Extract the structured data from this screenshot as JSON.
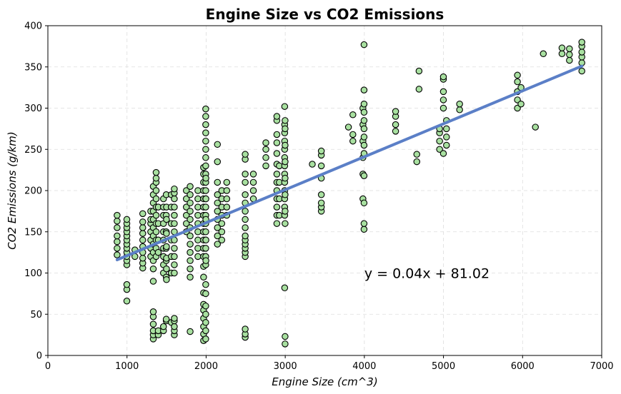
{
  "chart_data": {
    "type": "scatter",
    "title": "Engine Size vs CO2 Emissions",
    "xlabel": "Engine Size (cm^3)",
    "ylabel": "CO2 Emissions (g/km)",
    "xlim": [
      0,
      7000
    ],
    "ylim": [
      0,
      400
    ],
    "xticks": [
      0,
      1000,
      2000,
      3000,
      4000,
      5000,
      6000,
      7000
    ],
    "yticks": [
      0,
      50,
      100,
      150,
      200,
      250,
      300,
      350,
      400
    ],
    "xtick_labels": [
      "0",
      "1000",
      "2000",
      "3000",
      "4000",
      "5000",
      "6000",
      "7000"
    ],
    "ytick_labels": [
      "0",
      "50",
      "100",
      "150",
      "200",
      "250",
      "300",
      "350",
      "400"
    ],
    "grid": true,
    "colors": {
      "point_fill": "#a8e0a0",
      "point_edge": "#000000",
      "line": "#5b7fc7",
      "grid": "#dddddd"
    },
    "annotation": {
      "text": "y = 0.04x + 81.02",
      "x": 4000,
      "y": 100
    },
    "regression": {
      "slope": 0.04,
      "intercept": 81.02,
      "x_range": [
        875,
        6750
      ]
    },
    "points": [
      [
        875,
        122
      ],
      [
        875,
        130
      ],
      [
        875,
        138
      ],
      [
        875,
        145
      ],
      [
        875,
        155
      ],
      [
        875,
        163
      ],
      [
        875,
        170
      ],
      [
        998,
        66
      ],
      [
        998,
        80
      ],
      [
        998,
        86
      ],
      [
        998,
        110
      ],
      [
        998,
        115
      ],
      [
        998,
        120
      ],
      [
        998,
        125
      ],
      [
        998,
        130
      ],
      [
        998,
        135
      ],
      [
        998,
        140
      ],
      [
        998,
        145
      ],
      [
        998,
        150
      ],
      [
        998,
        155
      ],
      [
        998,
        160
      ],
      [
        998,
        165
      ],
      [
        1100,
        120
      ],
      [
        1100,
        128
      ],
      [
        1199,
        106
      ],
      [
        1199,
        112
      ],
      [
        1199,
        118
      ],
      [
        1199,
        125
      ],
      [
        1199,
        132
      ],
      [
        1199,
        140
      ],
      [
        1199,
        148
      ],
      [
        1199,
        155
      ],
      [
        1199,
        162
      ],
      [
        1199,
        172
      ],
      [
        1300,
        120
      ],
      [
        1300,
        130
      ],
      [
        1300,
        140
      ],
      [
        1300,
        150
      ],
      [
        1300,
        160
      ],
      [
        1300,
        165
      ],
      [
        1300,
        175
      ],
      [
        1332,
        20
      ],
      [
        1332,
        25
      ],
      [
        1332,
        30
      ],
      [
        1332,
        38
      ],
      [
        1332,
        47
      ],
      [
        1332,
        53
      ],
      [
        1332,
        90
      ],
      [
        1332,
        105
      ],
      [
        1332,
        115
      ],
      [
        1332,
        125
      ],
      [
        1332,
        135
      ],
      [
        1332,
        145
      ],
      [
        1332,
        155
      ],
      [
        1332,
        165
      ],
      [
        1332,
        175
      ],
      [
        1332,
        185
      ],
      [
        1332,
        195
      ],
      [
        1332,
        205
      ],
      [
        1368,
        120
      ],
      [
        1368,
        130
      ],
      [
        1368,
        140
      ],
      [
        1368,
        150
      ],
      [
        1368,
        160
      ],
      [
        1368,
        170
      ],
      [
        1368,
        180
      ],
      [
        1368,
        190
      ],
      [
        1368,
        200
      ],
      [
        1368,
        210
      ],
      [
        1368,
        215
      ],
      [
        1368,
        222
      ],
      [
        1395,
        25
      ],
      [
        1395,
        30
      ],
      [
        1395,
        125
      ],
      [
        1395,
        140
      ],
      [
        1395,
        160
      ],
      [
        1395,
        180
      ],
      [
        1461,
        30
      ],
      [
        1461,
        35
      ],
      [
        1461,
        100
      ],
      [
        1461,
        110
      ],
      [
        1461,
        120
      ],
      [
        1461,
        130
      ],
      [
        1461,
        140
      ],
      [
        1461,
        150
      ],
      [
        1461,
        160
      ],
      [
        1461,
        170
      ],
      [
        1461,
        180
      ],
      [
        1461,
        190
      ],
      [
        1496,
        42
      ],
      [
        1496,
        44
      ],
      [
        1496,
        95
      ],
      [
        1496,
        115
      ],
      [
        1496,
        130
      ],
      [
        1496,
        150
      ],
      [
        1496,
        170
      ],
      [
        1496,
        195
      ],
      [
        1499,
        92
      ],
      [
        1499,
        105
      ],
      [
        1499,
        118
      ],
      [
        1499,
        132
      ],
      [
        1499,
        148
      ],
      [
        1499,
        165
      ],
      [
        1499,
        180
      ],
      [
        1560,
        40
      ],
      [
        1560,
        100
      ],
      [
        1560,
        120
      ],
      [
        1560,
        140
      ],
      [
        1560,
        160
      ],
      [
        1560,
        180
      ],
      [
        1560,
        195
      ],
      [
        1598,
        25
      ],
      [
        1598,
        30
      ],
      [
        1598,
        35
      ],
      [
        1598,
        42
      ],
      [
        1598,
        45
      ],
      [
        1598,
        100
      ],
      [
        1598,
        110
      ],
      [
        1598,
        120
      ],
      [
        1598,
        130
      ],
      [
        1598,
        140
      ],
      [
        1598,
        150
      ],
      [
        1598,
        160
      ],
      [
        1598,
        170
      ],
      [
        1598,
        180
      ],
      [
        1598,
        190
      ],
      [
        1598,
        197
      ],
      [
        1598,
        202
      ],
      [
        1750,
        150
      ],
      [
        1750,
        160
      ],
      [
        1750,
        170
      ],
      [
        1750,
        180
      ],
      [
        1750,
        190
      ],
      [
        1750,
        200
      ],
      [
        1798,
        29
      ],
      [
        1798,
        95
      ],
      [
        1798,
        105
      ],
      [
        1798,
        115
      ],
      [
        1798,
        125
      ],
      [
        1798,
        135
      ],
      [
        1798,
        145
      ],
      [
        1798,
        155
      ],
      [
        1798,
        165
      ],
      [
        1798,
        175
      ],
      [
        1798,
        185
      ],
      [
        1798,
        195
      ],
      [
        1798,
        205
      ],
      [
        1896,
        120
      ],
      [
        1896,
        130
      ],
      [
        1896,
        140
      ],
      [
        1896,
        150
      ],
      [
        1896,
        160
      ],
      [
        1896,
        170
      ],
      [
        1896,
        180
      ],
      [
        1896,
        190
      ],
      [
        1896,
        200
      ],
      [
        1968,
        18
      ],
      [
        1968,
        26
      ],
      [
        1968,
        35
      ],
      [
        1968,
        45
      ],
      [
        1968,
        55
      ],
      [
        1968,
        62
      ],
      [
        1968,
        76
      ],
      [
        1968,
        95
      ],
      [
        1968,
        108
      ],
      [
        1968,
        120
      ],
      [
        1968,
        130
      ],
      [
        1968,
        140
      ],
      [
        1968,
        150
      ],
      [
        1968,
        160
      ],
      [
        1968,
        170
      ],
      [
        1968,
        180
      ],
      [
        1968,
        190
      ],
      [
        1968,
        200
      ],
      [
        1968,
        210
      ],
      [
        1968,
        220
      ],
      [
        1968,
        228
      ],
      [
        1995,
        20
      ],
      [
        1995,
        30
      ],
      [
        1995,
        40
      ],
      [
        1995,
        50
      ],
      [
        1995,
        60
      ],
      [
        1995,
        75
      ],
      [
        1995,
        86
      ],
      [
        1995,
        110
      ],
      [
        1995,
        120
      ],
      [
        1995,
        130
      ],
      [
        1995,
        140
      ],
      [
        1995,
        150
      ],
      [
        1995,
        160
      ],
      [
        1995,
        170
      ],
      [
        1995,
        180
      ],
      [
        1995,
        190
      ],
      [
        1995,
        200
      ],
      [
        1995,
        210
      ],
      [
        1995,
        220
      ],
      [
        1995,
        230
      ],
      [
        1995,
        240
      ],
      [
        1995,
        250
      ],
      [
        1995,
        260
      ],
      [
        1995,
        270
      ],
      [
        1995,
        280
      ],
      [
        1995,
        290
      ],
      [
        1995,
        299
      ],
      [
        1997,
        115
      ],
      [
        1997,
        140
      ],
      [
        1997,
        165
      ],
      [
        1997,
        190
      ],
      [
        1997,
        215
      ],
      [
        2143,
        135
      ],
      [
        2143,
        145
      ],
      [
        2143,
        155
      ],
      [
        2143,
        165
      ],
      [
        2143,
        175
      ],
      [
        2143,
        185
      ],
      [
        2143,
        195
      ],
      [
        2143,
        210
      ],
      [
        2143,
        235
      ],
      [
        2143,
        256
      ],
      [
        2198,
        140
      ],
      [
        2198,
        150
      ],
      [
        2198,
        160
      ],
      [
        2198,
        170
      ],
      [
        2198,
        180
      ],
      [
        2198,
        190
      ],
      [
        2198,
        200
      ],
      [
        2261,
        170
      ],
      [
        2261,
        180
      ],
      [
        2261,
        190
      ],
      [
        2261,
        200
      ],
      [
        2261,
        210
      ],
      [
        2494,
        22
      ],
      [
        2494,
        26
      ],
      [
        2494,
        32
      ],
      [
        2494,
        120
      ],
      [
        2494,
        125
      ],
      [
        2494,
        130
      ],
      [
        2494,
        135
      ],
      [
        2494,
        140
      ],
      [
        2494,
        145
      ],
      [
        2494,
        155
      ],
      [
        2494,
        165
      ],
      [
        2494,
        175
      ],
      [
        2494,
        185
      ],
      [
        2494,
        195
      ],
      [
        2494,
        210
      ],
      [
        2494,
        220
      ],
      [
        2494,
        238
      ],
      [
        2494,
        244
      ],
      [
        2597,
        190
      ],
      [
        2597,
        200
      ],
      [
        2597,
        210
      ],
      [
        2597,
        220
      ],
      [
        2755,
        230
      ],
      [
        2755,
        240
      ],
      [
        2755,
        250
      ],
      [
        2755,
        258
      ],
      [
        2894,
        160
      ],
      [
        2894,
        170
      ],
      [
        2894,
        180
      ],
      [
        2894,
        190
      ],
      [
        2894,
        200
      ],
      [
        2894,
        210
      ],
      [
        2894,
        220
      ],
      [
        2894,
        232
      ],
      [
        2894,
        245
      ],
      [
        2894,
        258
      ],
      [
        2894,
        268
      ],
      [
        2894,
        285
      ],
      [
        2894,
        290
      ],
      [
        2925,
        170
      ],
      [
        2925,
        190
      ],
      [
        2925,
        210
      ],
      [
        2925,
        230
      ],
      [
        2993,
        82
      ],
      [
        2993,
        170
      ],
      [
        2993,
        180
      ],
      [
        2993,
        190
      ],
      [
        2993,
        200
      ],
      [
        2993,
        210
      ],
      [
        2993,
        220
      ],
      [
        2993,
        230
      ],
      [
        2993,
        240
      ],
      [
        2993,
        250
      ],
      [
        2993,
        260
      ],
      [
        2993,
        270
      ],
      [
        2993,
        280
      ],
      [
        2993,
        302
      ],
      [
        2998,
        14
      ],
      [
        2998,
        23
      ],
      [
        2998,
        160
      ],
      [
        2998,
        175
      ],
      [
        2998,
        195
      ],
      [
        2998,
        215
      ],
      [
        2998,
        235
      ],
      [
        2998,
        255
      ],
      [
        2998,
        275
      ],
      [
        2998,
        285
      ],
      [
        3342,
        232
      ],
      [
        3456,
        175
      ],
      [
        3456,
        180
      ],
      [
        3456,
        185
      ],
      [
        3456,
        195
      ],
      [
        3456,
        215
      ],
      [
        3456,
        230
      ],
      [
        3456,
        243
      ],
      [
        3456,
        248
      ],
      [
        3799,
        277
      ],
      [
        3855,
        260
      ],
      [
        3855,
        268
      ],
      [
        3855,
        292
      ],
      [
        3982,
        190
      ],
      [
        3982,
        220
      ],
      [
        3982,
        240
      ],
      [
        3982,
        260
      ],
      [
        3982,
        280
      ],
      [
        3982,
        300
      ],
      [
        3996,
        153
      ],
      [
        3996,
        160
      ],
      [
        3996,
        185
      ],
      [
        3996,
        218
      ],
      [
        3996,
        245
      ],
      [
        3996,
        255
      ],
      [
        3996,
        265
      ],
      [
        3996,
        275
      ],
      [
        3996,
        285
      ],
      [
        3996,
        295
      ],
      [
        3996,
        305
      ],
      [
        3996,
        322
      ],
      [
        3996,
        377
      ],
      [
        4395,
        272
      ],
      [
        4395,
        280
      ],
      [
        4395,
        290
      ],
      [
        4395,
        296
      ],
      [
        4663,
        235
      ],
      [
        4663,
        244
      ],
      [
        4691,
        323
      ],
      [
        4691,
        345
      ],
      [
        4951,
        250
      ],
      [
        4951,
        260
      ],
      [
        4951,
        270
      ],
      [
        4951,
        275
      ],
      [
        4999,
        245
      ],
      [
        4999,
        300
      ],
      [
        4999,
        310
      ],
      [
        4999,
        320
      ],
      [
        4999,
        335
      ],
      [
        4999,
        338
      ],
      [
        5038,
        255
      ],
      [
        5038,
        265
      ],
      [
        5038,
        275
      ],
      [
        5038,
        285
      ],
      [
        5204,
        298
      ],
      [
        5204,
        305
      ],
      [
        5935,
        300
      ],
      [
        5935,
        310
      ],
      [
        5935,
        320
      ],
      [
        5935,
        332
      ],
      [
        5935,
        340
      ],
      [
        5980,
        305
      ],
      [
        5980,
        325
      ],
      [
        6162,
        277
      ],
      [
        6262,
        366
      ],
      [
        6498,
        366
      ],
      [
        6498,
        373
      ],
      [
        6592,
        358
      ],
      [
        6592,
        365
      ],
      [
        6592,
        372
      ],
      [
        6749,
        345
      ],
      [
        6749,
        355
      ],
      [
        6749,
        362
      ],
      [
        6749,
        368
      ],
      [
        6749,
        375
      ],
      [
        6749,
        380
      ]
    ]
  }
}
